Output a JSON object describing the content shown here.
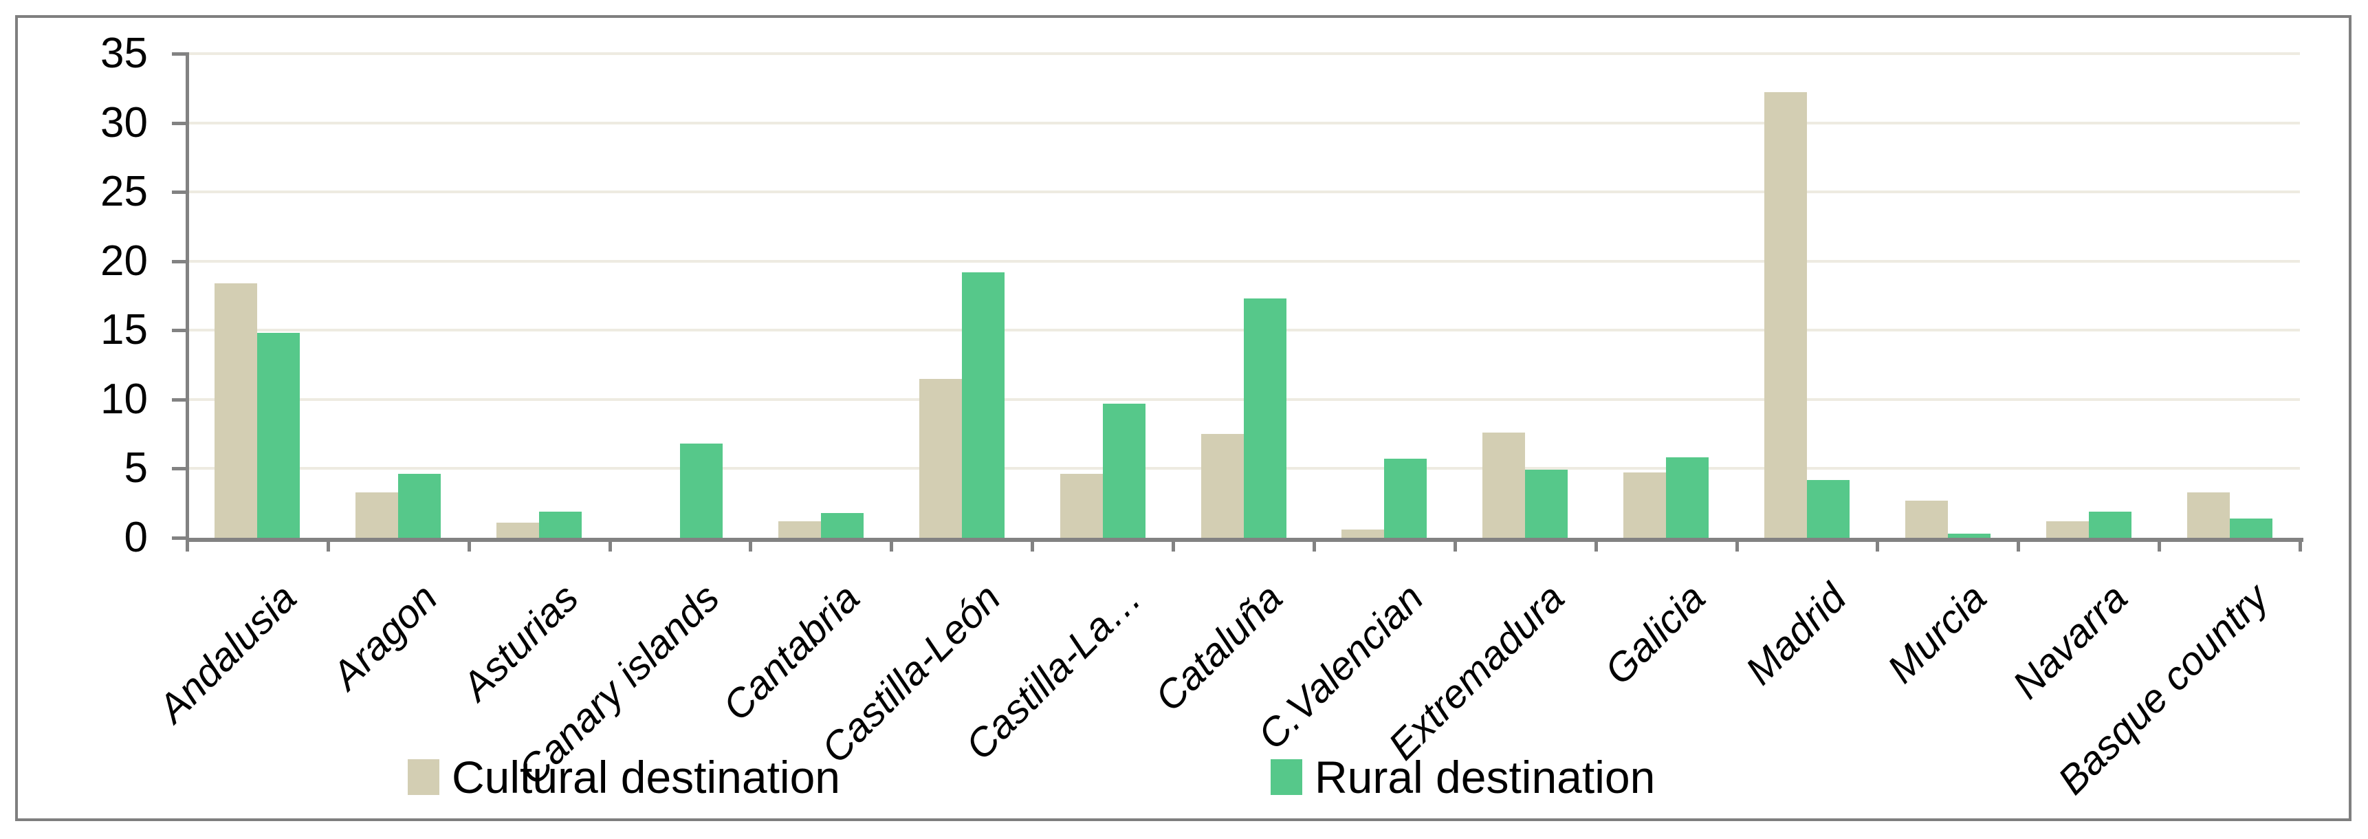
{
  "chart_data": {
    "type": "bar",
    "categories": [
      "Andalusia",
      "Aragon",
      "Asturias",
      "Canary islands",
      "Cantabria",
      "Castilla-León",
      "Castilla-La…",
      "Cataluña",
      "C.Valencian",
      "Extremadura",
      "Galicia",
      "Madrid",
      "Murcia",
      "Navarra",
      "Basque country"
    ],
    "series": [
      {
        "name": "Cultural destination",
        "color": "#d3ceb3",
        "values": [
          18.4,
          3.3,
          1.1,
          0,
          1.2,
          11.5,
          4.6,
          7.5,
          0.6,
          7.6,
          4.7,
          32.2,
          2.7,
          1.2,
          3.3
        ]
      },
      {
        "name": "Rural destination",
        "color": "#56c88a",
        "values": [
          14.8,
          4.6,
          1.9,
          6.8,
          1.8,
          19.2,
          9.7,
          17.3,
          5.7,
          4.9,
          5.8,
          4.2,
          0.3,
          1.9,
          1.4
        ]
      }
    ],
    "title": "",
    "xlabel": "",
    "ylabel": "",
    "ylim": [
      0,
      35
    ],
    "yticks": [
      0,
      5,
      10,
      15,
      20,
      25,
      30,
      35
    ],
    "grid": true,
    "legend_position": "bottom"
  },
  "style": {
    "background": "#ffffff",
    "frame_color": "#7f7f7f",
    "axis_color": "#828282",
    "gridline_color": "#eeebe1",
    "text_color": "#000000"
  }
}
